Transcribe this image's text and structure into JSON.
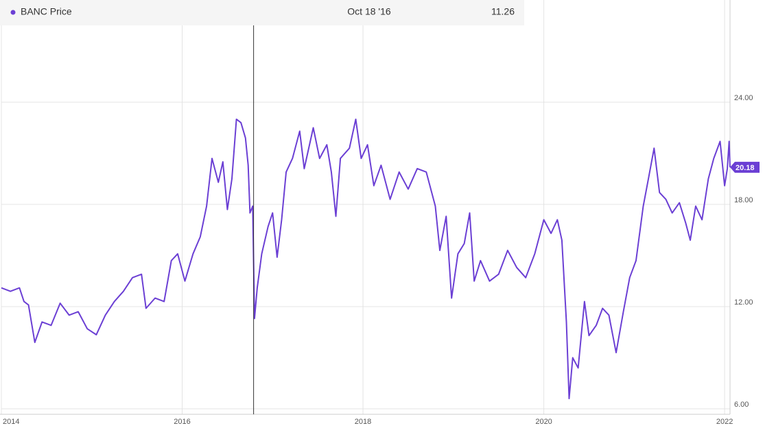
{
  "chart_data": {
    "type": "line",
    "x": [
      2014.0,
      2014.1,
      2014.2,
      2014.25,
      2014.3,
      2014.37,
      2014.45,
      2014.55,
      2014.65,
      2014.75,
      2014.85,
      2014.95,
      2015.05,
      2015.15,
      2015.25,
      2015.35,
      2015.45,
      2015.55,
      2015.6,
      2015.7,
      2015.8,
      2015.88,
      2015.95,
      2016.03,
      2016.12,
      2016.2,
      2016.27,
      2016.33,
      2016.4,
      2016.45,
      2016.5,
      2016.55,
      2016.6,
      2016.65,
      2016.7,
      2016.73,
      2016.75,
      2016.78,
      2016.8,
      2016.83,
      2016.88,
      2016.95,
      2017.0,
      2017.05,
      2017.1,
      2017.15,
      2017.22,
      2017.3,
      2017.35,
      2017.45,
      2017.52,
      2017.6,
      2017.65,
      2017.7,
      2017.75,
      2017.85,
      2017.92,
      2017.98,
      2018.05,
      2018.12,
      2018.2,
      2018.3,
      2018.4,
      2018.5,
      2018.6,
      2018.7,
      2018.8,
      2018.85,
      2018.92,
      2018.98,
      2019.05,
      2019.12,
      2019.18,
      2019.23,
      2019.3,
      2019.4,
      2019.5,
      2019.6,
      2019.7,
      2019.8,
      2019.9,
      2020.0,
      2020.08,
      2020.15,
      2020.2,
      2020.25,
      2020.28,
      2020.32,
      2020.38,
      2020.45,
      2020.5,
      2020.58,
      2020.65,
      2020.72,
      2020.8,
      2020.88,
      2020.95,
      2021.02,
      2021.1,
      2021.15,
      2021.22,
      2021.28,
      2021.35,
      2021.42,
      2021.5,
      2021.57,
      2021.62,
      2021.68,
      2021.75,
      2021.82,
      2021.88,
      2021.95,
      2022.0,
      2022.03,
      2022.05,
      2022.06
    ],
    "series": [
      {
        "name": "BANC Price",
        "color": "#6b3fd4",
        "values": [
          13.1,
          12.9,
          13.1,
          12.3,
          12.1,
          9.9,
          11.1,
          10.9,
          12.2,
          11.5,
          11.7,
          10.7,
          10.35,
          11.5,
          12.3,
          12.9,
          13.7,
          13.9,
          11.9,
          12.5,
          12.3,
          14.7,
          15.1,
          13.5,
          15.1,
          16.1,
          17.9,
          20.7,
          19.3,
          20.5,
          17.7,
          19.5,
          23.0,
          22.8,
          21.9,
          20.3,
          17.5,
          17.9,
          11.3,
          13.1,
          15.1,
          16.7,
          17.5,
          14.9,
          17.1,
          19.9,
          20.7,
          22.3,
          20.1,
          22.5,
          20.7,
          21.5,
          19.9,
          17.3,
          20.7,
          21.3,
          23.0,
          20.7,
          21.5,
          19.1,
          20.3,
          18.3,
          19.9,
          18.9,
          20.1,
          19.9,
          17.9,
          15.3,
          17.3,
          12.5,
          15.1,
          15.7,
          17.5,
          13.5,
          14.7,
          13.5,
          13.9,
          15.3,
          14.3,
          13.7,
          15.1,
          17.1,
          16.3,
          17.1,
          15.9,
          11.1,
          6.6,
          9.0,
          8.4,
          12.3,
          10.3,
          10.9,
          11.9,
          11.5,
          9.3,
          11.7,
          13.7,
          14.7,
          17.9,
          19.3,
          21.3,
          18.7,
          18.3,
          17.5,
          18.1,
          16.9,
          15.9,
          17.9,
          17.1,
          19.5,
          20.7,
          21.7,
          19.1,
          20.1,
          21.7,
          20.18
        ]
      }
    ],
    "last_value": 20.18,
    "hover": {
      "label": "Oct 18 '16",
      "value": 11.26,
      "x": 2016.79
    },
    "xlim": [
      2014.0,
      2022.06
    ],
    "xticks": [
      2014,
      2016,
      2018,
      2020,
      2022
    ],
    "ylim": [
      5.68,
      30.0
    ],
    "yticks": [
      {
        "value": 6,
        "label": "6.00"
      },
      {
        "value": 12,
        "label": "12.00"
      },
      {
        "value": 18,
        "label": "18.00"
      },
      {
        "value": 24,
        "label": "24.00"
      }
    ],
    "grid": true
  }
}
